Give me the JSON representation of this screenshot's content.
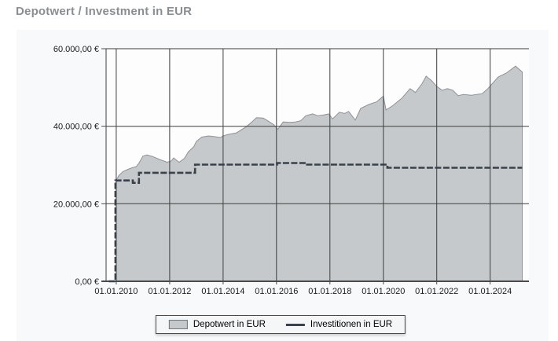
{
  "header": {
    "title": "Depotwert / Investment in EUR"
  },
  "legend": {
    "depotwert_label": "Depotwert in EUR",
    "investitionen_label": "Investitionen in EUR"
  },
  "chart_data": {
    "type": "area",
    "title": "Depotwert / Investment in EUR",
    "grid": true,
    "legend_position": "bottom-center",
    "axes": {
      "x_min": 2009.62,
      "x_max": 2025.45,
      "y_min": 0,
      "y_max": 60000,
      "x_tick_years": [
        2010,
        2012,
        2014,
        2016,
        2018,
        2020,
        2022,
        2024
      ],
      "x_tick_labels": [
        "01.01.2010",
        "01.01.2012",
        "01.01.2014",
        "01.01.2016",
        "01.01.2018",
        "01.01.2020",
        "01.01.2022",
        "01.01.2024"
      ],
      "y_tick_values": [
        0,
        20000,
        40000,
        60000
      ],
      "y_tick_labels": [
        "0,00 €",
        "20.000,00 €",
        "40.000,00 €",
        "60.000,00 €"
      ]
    },
    "colors": {
      "plot_bg": "#fdfdfe",
      "grid": "#3d3d3d",
      "axis": "#4a4a4a",
      "area_fill": "#c6c9cc",
      "area_stroke": "#8e9296",
      "line": "#39424b",
      "text": "#1c1c1c",
      "panel_bg": "#f8f9fa",
      "title": "#8a8e91"
    },
    "series": [
      {
        "name": "Depotwert in EUR",
        "type": "area",
        "fill": "#c6c9cc",
        "stroke": "#8e9296",
        "points": [
          [
            2010.0,
            26100
          ],
          [
            2010.1,
            27300
          ],
          [
            2010.25,
            28300
          ],
          [
            2010.45,
            28900
          ],
          [
            2010.6,
            29300
          ],
          [
            2010.75,
            29600
          ],
          [
            2010.85,
            30500
          ],
          [
            2011.0,
            32300
          ],
          [
            2011.15,
            32600
          ],
          [
            2011.35,
            32200
          ],
          [
            2011.6,
            31500
          ],
          [
            2011.9,
            30700
          ],
          [
            2012.05,
            31000
          ],
          [
            2012.15,
            31800
          ],
          [
            2012.35,
            30700
          ],
          [
            2012.55,
            31700
          ],
          [
            2012.7,
            33400
          ],
          [
            2012.9,
            34700
          ],
          [
            2013.0,
            36100
          ],
          [
            2013.2,
            37200
          ],
          [
            2013.45,
            37500
          ],
          [
            2013.7,
            37300
          ],
          [
            2013.9,
            37100
          ],
          [
            2014.0,
            37500
          ],
          [
            2014.2,
            37900
          ],
          [
            2014.5,
            38300
          ],
          [
            2014.85,
            39800
          ],
          [
            2015.05,
            40900
          ],
          [
            2015.25,
            42200
          ],
          [
            2015.5,
            42100
          ],
          [
            2015.7,
            41300
          ],
          [
            2015.9,
            40400
          ],
          [
            2016.05,
            39200
          ],
          [
            2016.25,
            41100
          ],
          [
            2016.5,
            41000
          ],
          [
            2016.7,
            41100
          ],
          [
            2016.9,
            41400
          ],
          [
            2017.1,
            42700
          ],
          [
            2017.35,
            43200
          ],
          [
            2017.55,
            42700
          ],
          [
            2017.75,
            42900
          ],
          [
            2017.95,
            43200
          ],
          [
            2018.1,
            41900
          ],
          [
            2018.35,
            43600
          ],
          [
            2018.55,
            43300
          ],
          [
            2018.7,
            43800
          ],
          [
            2018.95,
            41600
          ],
          [
            2019.15,
            44600
          ],
          [
            2019.45,
            45600
          ],
          [
            2019.75,
            46300
          ],
          [
            2020.0,
            47800
          ],
          [
            2020.1,
            44200
          ],
          [
            2020.35,
            45300
          ],
          [
            2020.7,
            47300
          ],
          [
            2021.0,
            49700
          ],
          [
            2021.2,
            48700
          ],
          [
            2021.45,
            51000
          ],
          [
            2021.6,
            52900
          ],
          [
            2021.8,
            51800
          ],
          [
            2022.0,
            50300
          ],
          [
            2022.2,
            49300
          ],
          [
            2022.4,
            49700
          ],
          [
            2022.6,
            49300
          ],
          [
            2022.8,
            47900
          ],
          [
            2023.0,
            48200
          ],
          [
            2023.3,
            48000
          ],
          [
            2023.7,
            48400
          ],
          [
            2023.9,
            49600
          ],
          [
            2024.0,
            50400
          ],
          [
            2024.3,
            52700
          ],
          [
            2024.6,
            53700
          ],
          [
            2024.95,
            55500
          ],
          [
            2025.2,
            54000
          ]
        ]
      },
      {
        "name": "Investitionen in EUR",
        "type": "step-line",
        "color": "#39424b",
        "points": [
          [
            2009.72,
            0
          ],
          [
            2009.97,
            26000
          ],
          [
            2010.62,
            25400
          ],
          [
            2010.85,
            28000
          ],
          [
            2012.95,
            30100
          ],
          [
            2016.02,
            30500
          ],
          [
            2017.1,
            30100
          ],
          [
            2020.15,
            29300
          ],
          [
            2025.2,
            29300
          ]
        ]
      }
    ]
  }
}
